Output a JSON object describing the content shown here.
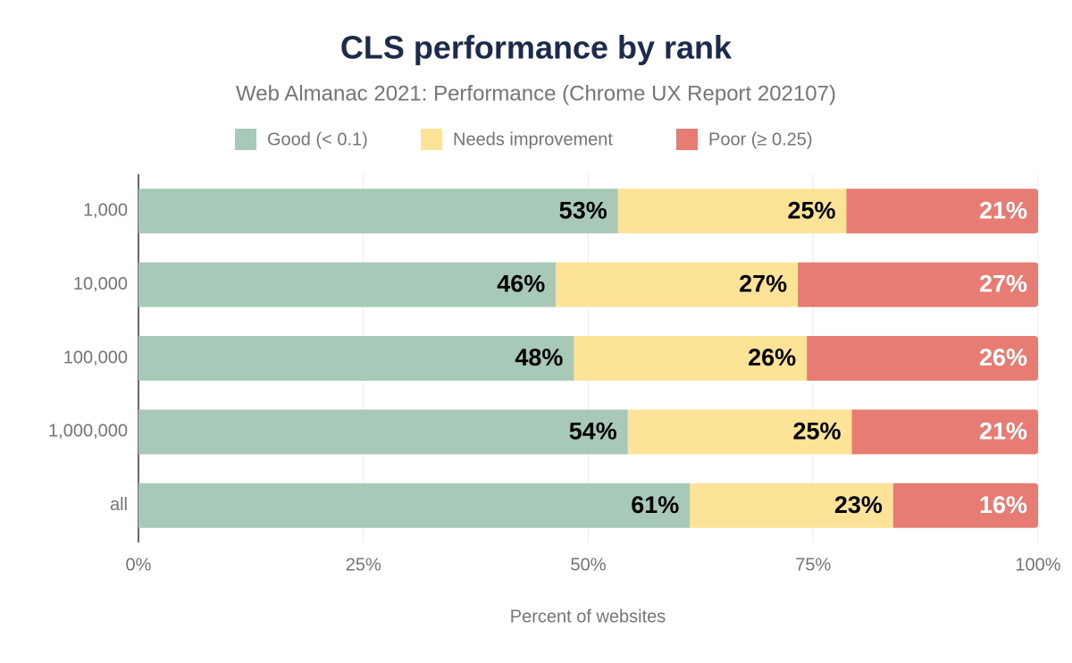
{
  "chart_data": {
    "type": "stacked-bar-horizontal",
    "title": "CLS performance by rank",
    "subtitle": "Web Almanac 2021: Performance (Chrome UX Report 202107)",
    "x_label": "Percent of websites",
    "categories": [
      "1,000",
      "10,000",
      "100,000",
      "1,000,000",
      "all"
    ],
    "series": [
      {
        "name": "Good (< 0.1)",
        "color": "#a8c8b8",
        "values": [
          53.3,
          46.4,
          48.4,
          54.4,
          61.3
        ],
        "value_labels": [
          "53%",
          "46%",
          "48%",
          "54%",
          "61%"
        ]
      },
      {
        "name": "Needs improvement",
        "color": "#fde397",
        "values": [
          25.4,
          26.9,
          25.9,
          24.9,
          22.6
        ],
        "value_labels": [
          "25%",
          "27%",
          "26%",
          "25%",
          "23%"
        ]
      },
      {
        "name": "Poor (≥ 0.25)",
        "color": "#e67c73",
        "values": [
          21.3,
          26.7,
          25.7,
          20.7,
          16.1
        ],
        "value_labels": [
          "21%",
          "27%",
          "26%",
          "21%",
          "16%"
        ]
      }
    ],
    "xlim": [
      0,
      100
    ],
    "xticks": [
      {
        "value": 0,
        "label": "0%"
      },
      {
        "value": 25,
        "label": "25%"
      },
      {
        "value": 50,
        "label": "50%"
      },
      {
        "value": 75,
        "label": "75%"
      },
      {
        "value": 100,
        "label": "100%"
      }
    ],
    "grid": true
  }
}
